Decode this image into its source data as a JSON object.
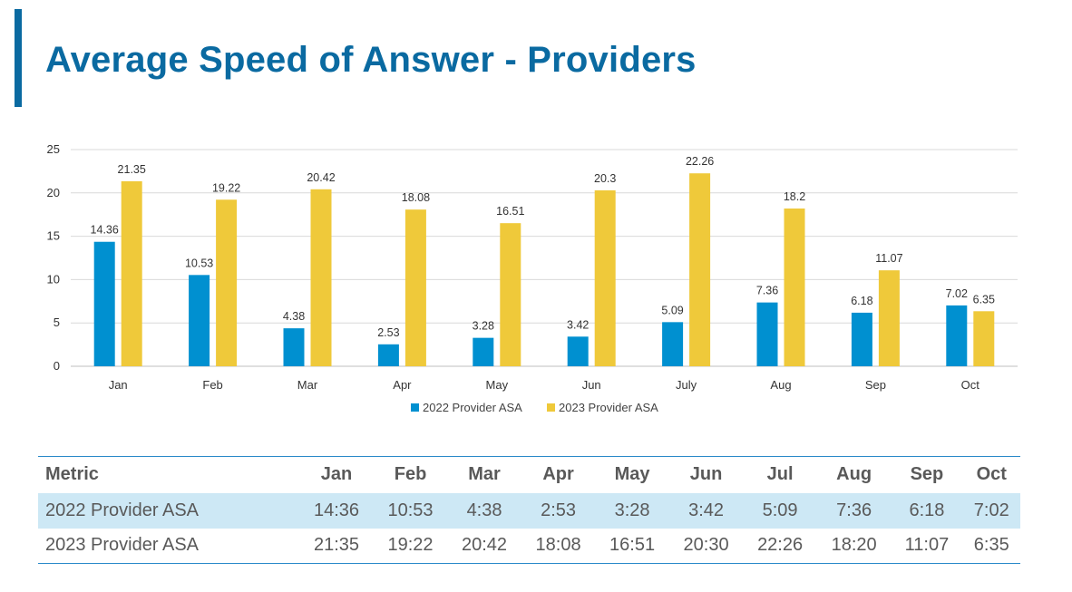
{
  "page": {
    "title": "Average Speed of Answer - Providers",
    "title_color": "#0a6aa1",
    "accent_color": "#0a6aa1"
  },
  "chart_data": {
    "type": "bar",
    "categories": [
      "Jan",
      "Feb",
      "Mar",
      "Apr",
      "May",
      "Jun",
      "July",
      "Aug",
      "Sep",
      "Oct"
    ],
    "series": [
      {
        "name": "2022 Provider ASA",
        "color": "#0090d0",
        "values": [
          14.36,
          10.53,
          4.38,
          2.53,
          3.28,
          3.42,
          5.09,
          7.36,
          6.18,
          7.02
        ],
        "labels": [
          "14.36",
          "10.53",
          "4.38",
          "2.53",
          "3.28",
          "3.42",
          "5.09",
          "7.36",
          "6.18",
          "7.02"
        ]
      },
      {
        "name": "2023 Provider ASA",
        "color": "#efc93a",
        "values": [
          21.35,
          19.22,
          20.42,
          18.08,
          16.51,
          20.3,
          22.26,
          18.2,
          11.07,
          6.35
        ],
        "labels": [
          "21.35",
          "19.22",
          "20.42",
          "18.08",
          "16.51",
          "20.3",
          "22.26",
          "18.2",
          "11.07",
          "6.35"
        ]
      }
    ],
    "title": "",
    "xlabel": "",
    "ylabel": "",
    "ylim": [
      0,
      25
    ],
    "yticks": [
      0,
      5,
      10,
      15,
      20,
      25
    ],
    "grid": true,
    "legend_position": "bottom"
  },
  "table": {
    "columns": [
      "Metric",
      "Jan",
      "Feb",
      "Mar",
      "Apr",
      "May",
      "Jun",
      "Jul",
      "Aug",
      "Sep",
      "Oct"
    ],
    "rows": [
      {
        "metric": "2022 Provider ASA",
        "cells": [
          "14:36",
          "10:53",
          "4:38",
          "2:53",
          "3:28",
          "3:42",
          "5:09",
          "7:36",
          "6:18",
          "7:02"
        ]
      },
      {
        "metric": "2023 Provider ASA",
        "cells": [
          "21:35",
          "19:22",
          "20:42",
          "18:08",
          "16:51",
          "20:30",
          "22:26",
          "18:20",
          "11:07",
          "6:35"
        ]
      }
    ]
  }
}
